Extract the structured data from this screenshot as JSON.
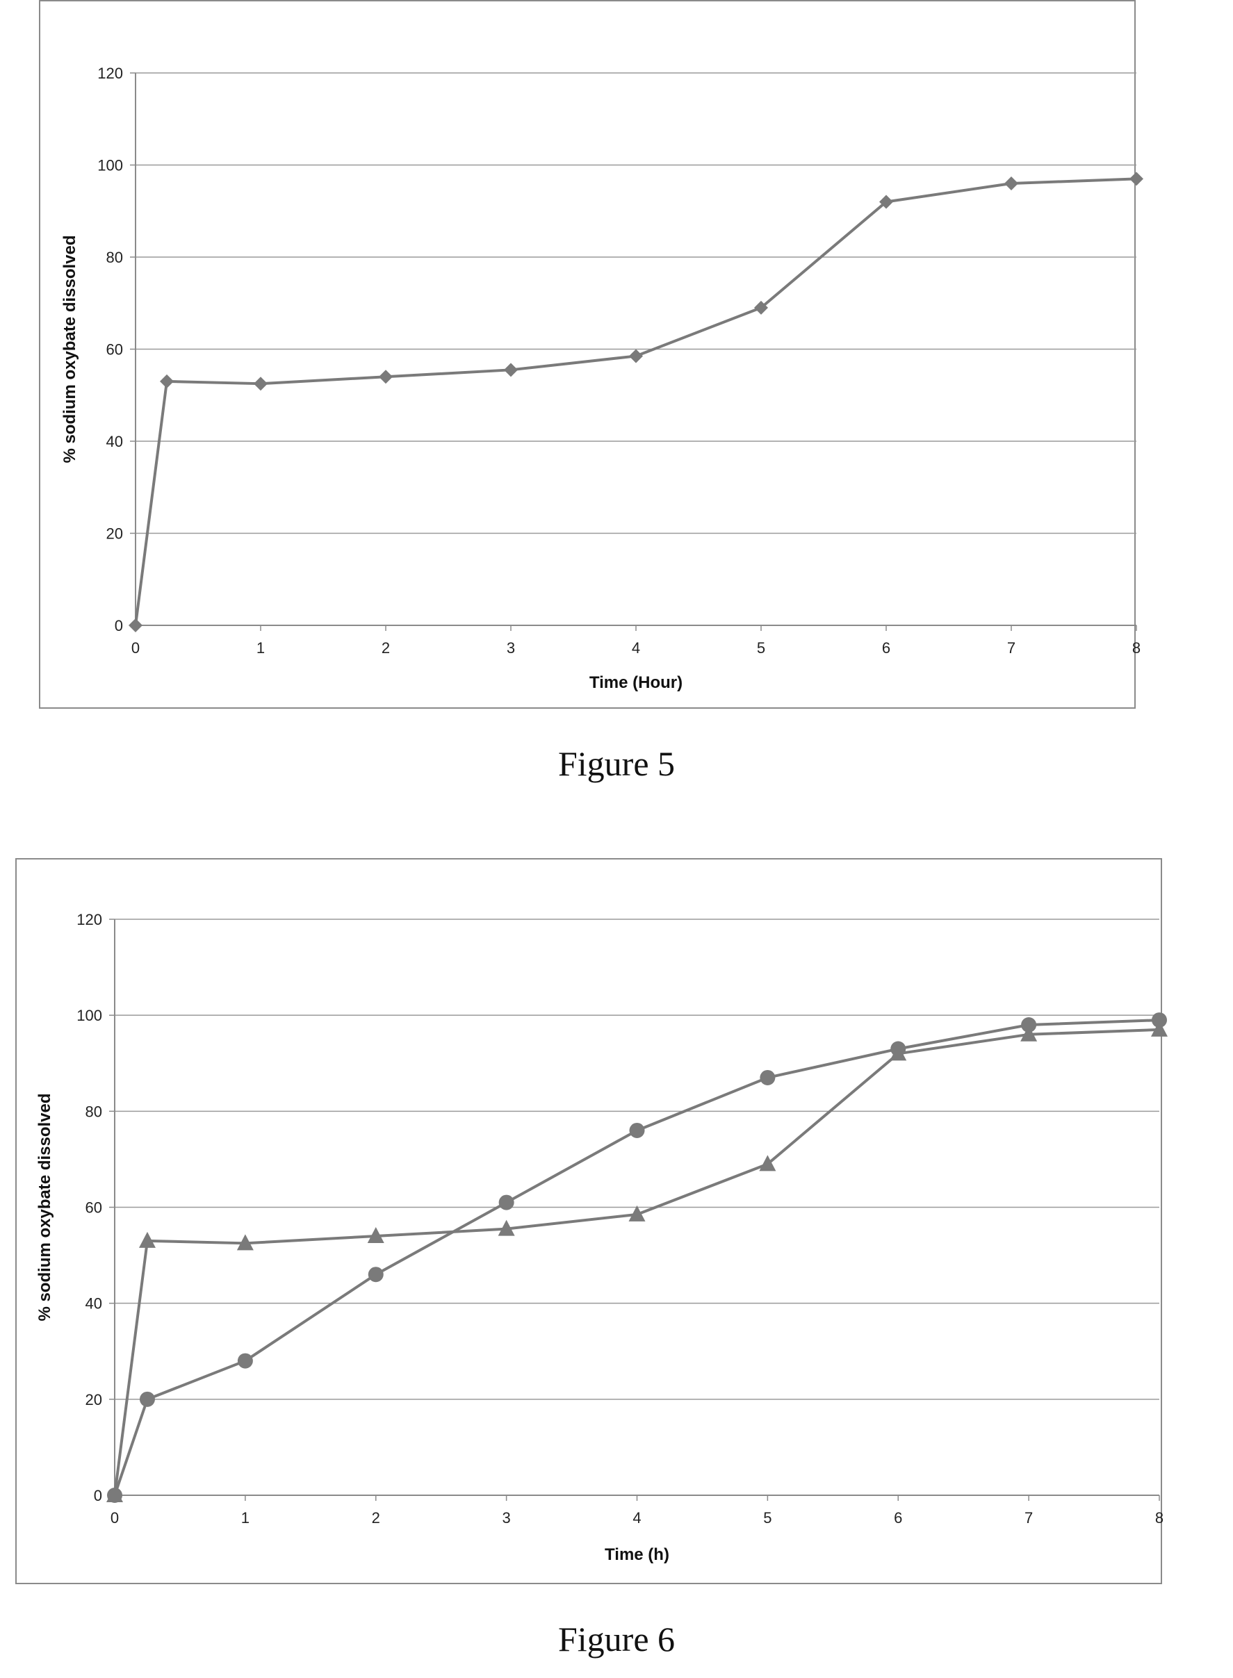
{
  "chart_data": [
    {
      "type": "line",
      "caption": "Figure 5",
      "xlabel": "Time (Hour)",
      "ylabel": "% sodium oxybate dissolved",
      "xlim": [
        0,
        8
      ],
      "ylim": [
        0,
        120
      ],
      "xticks": [
        0,
        1,
        2,
        3,
        4,
        5,
        6,
        7,
        8
      ],
      "yticks": [
        0,
        20,
        40,
        60,
        80,
        100,
        120
      ],
      "grid": "horizontal",
      "series": [
        {
          "marker": "diamond",
          "color": "#7a7a7a",
          "x": [
            0,
            0.25,
            1,
            2,
            3,
            4,
            5,
            6,
            7,
            8
          ],
          "y": [
            0,
            53,
            52.5,
            54,
            55.5,
            58.5,
            69,
            92,
            96,
            97
          ]
        }
      ]
    },
    {
      "type": "line",
      "caption": "Figure 6",
      "xlabel": "Time (h)",
      "ylabel": "% sodium oxybate dissolved",
      "xlim": [
        0,
        8
      ],
      "ylim": [
        0,
        120
      ],
      "xticks": [
        0,
        1,
        2,
        3,
        4,
        5,
        6,
        7,
        8
      ],
      "yticks": [
        0,
        20,
        40,
        60,
        80,
        100,
        120
      ],
      "grid": "horizontal",
      "series": [
        {
          "marker": "circle",
          "color": "#7a7a7a",
          "x": [
            0,
            0.25,
            1,
            2,
            3,
            4,
            5,
            6,
            7,
            8
          ],
          "y": [
            0,
            20,
            28,
            46,
            61,
            76,
            87,
            93,
            98,
            99
          ]
        },
        {
          "marker": "triangle",
          "color": "#7a7a7a",
          "x": [
            0,
            0.25,
            1,
            2,
            3,
            4,
            5,
            6,
            7,
            8
          ],
          "y": [
            0,
            53,
            52.5,
            54,
            55.5,
            58.5,
            69,
            92,
            96,
            97
          ]
        }
      ]
    }
  ]
}
